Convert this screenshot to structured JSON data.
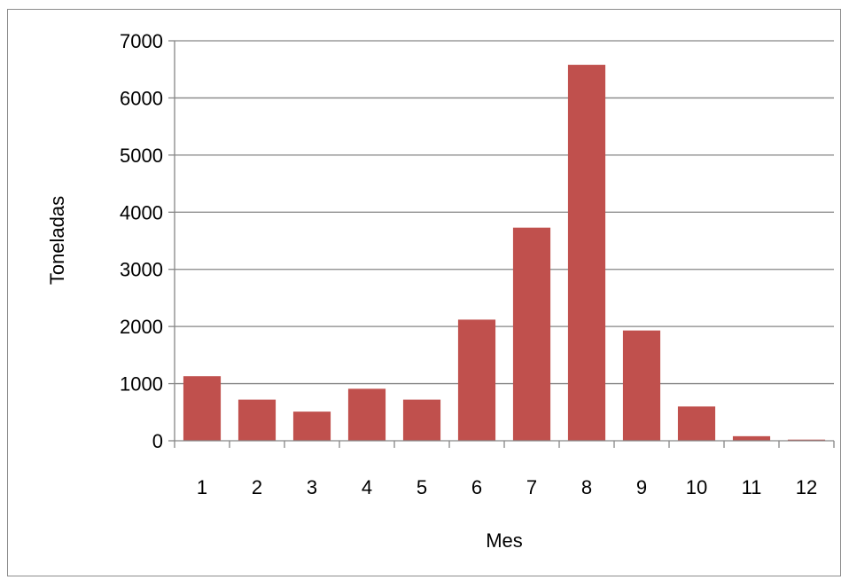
{
  "chart_data": {
    "type": "bar",
    "title": "",
    "xlabel": "Mes",
    "ylabel": "Toneladas",
    "categories": [
      "1",
      "2",
      "3",
      "4",
      "5",
      "6",
      "7",
      "8",
      "9",
      "10",
      "11",
      "12"
    ],
    "values": [
      1130,
      720,
      510,
      910,
      720,
      2120,
      3730,
      6580,
      1930,
      600,
      80,
      20
    ],
    "ylim": [
      0,
      7000
    ],
    "yticks": [
      "0",
      "1000",
      "2000",
      "3000",
      "4000",
      "5000",
      "6000",
      "7000"
    ],
    "grid": true,
    "legend": "none",
    "bar_color": "#c0504d",
    "grid_color": "#868686"
  }
}
